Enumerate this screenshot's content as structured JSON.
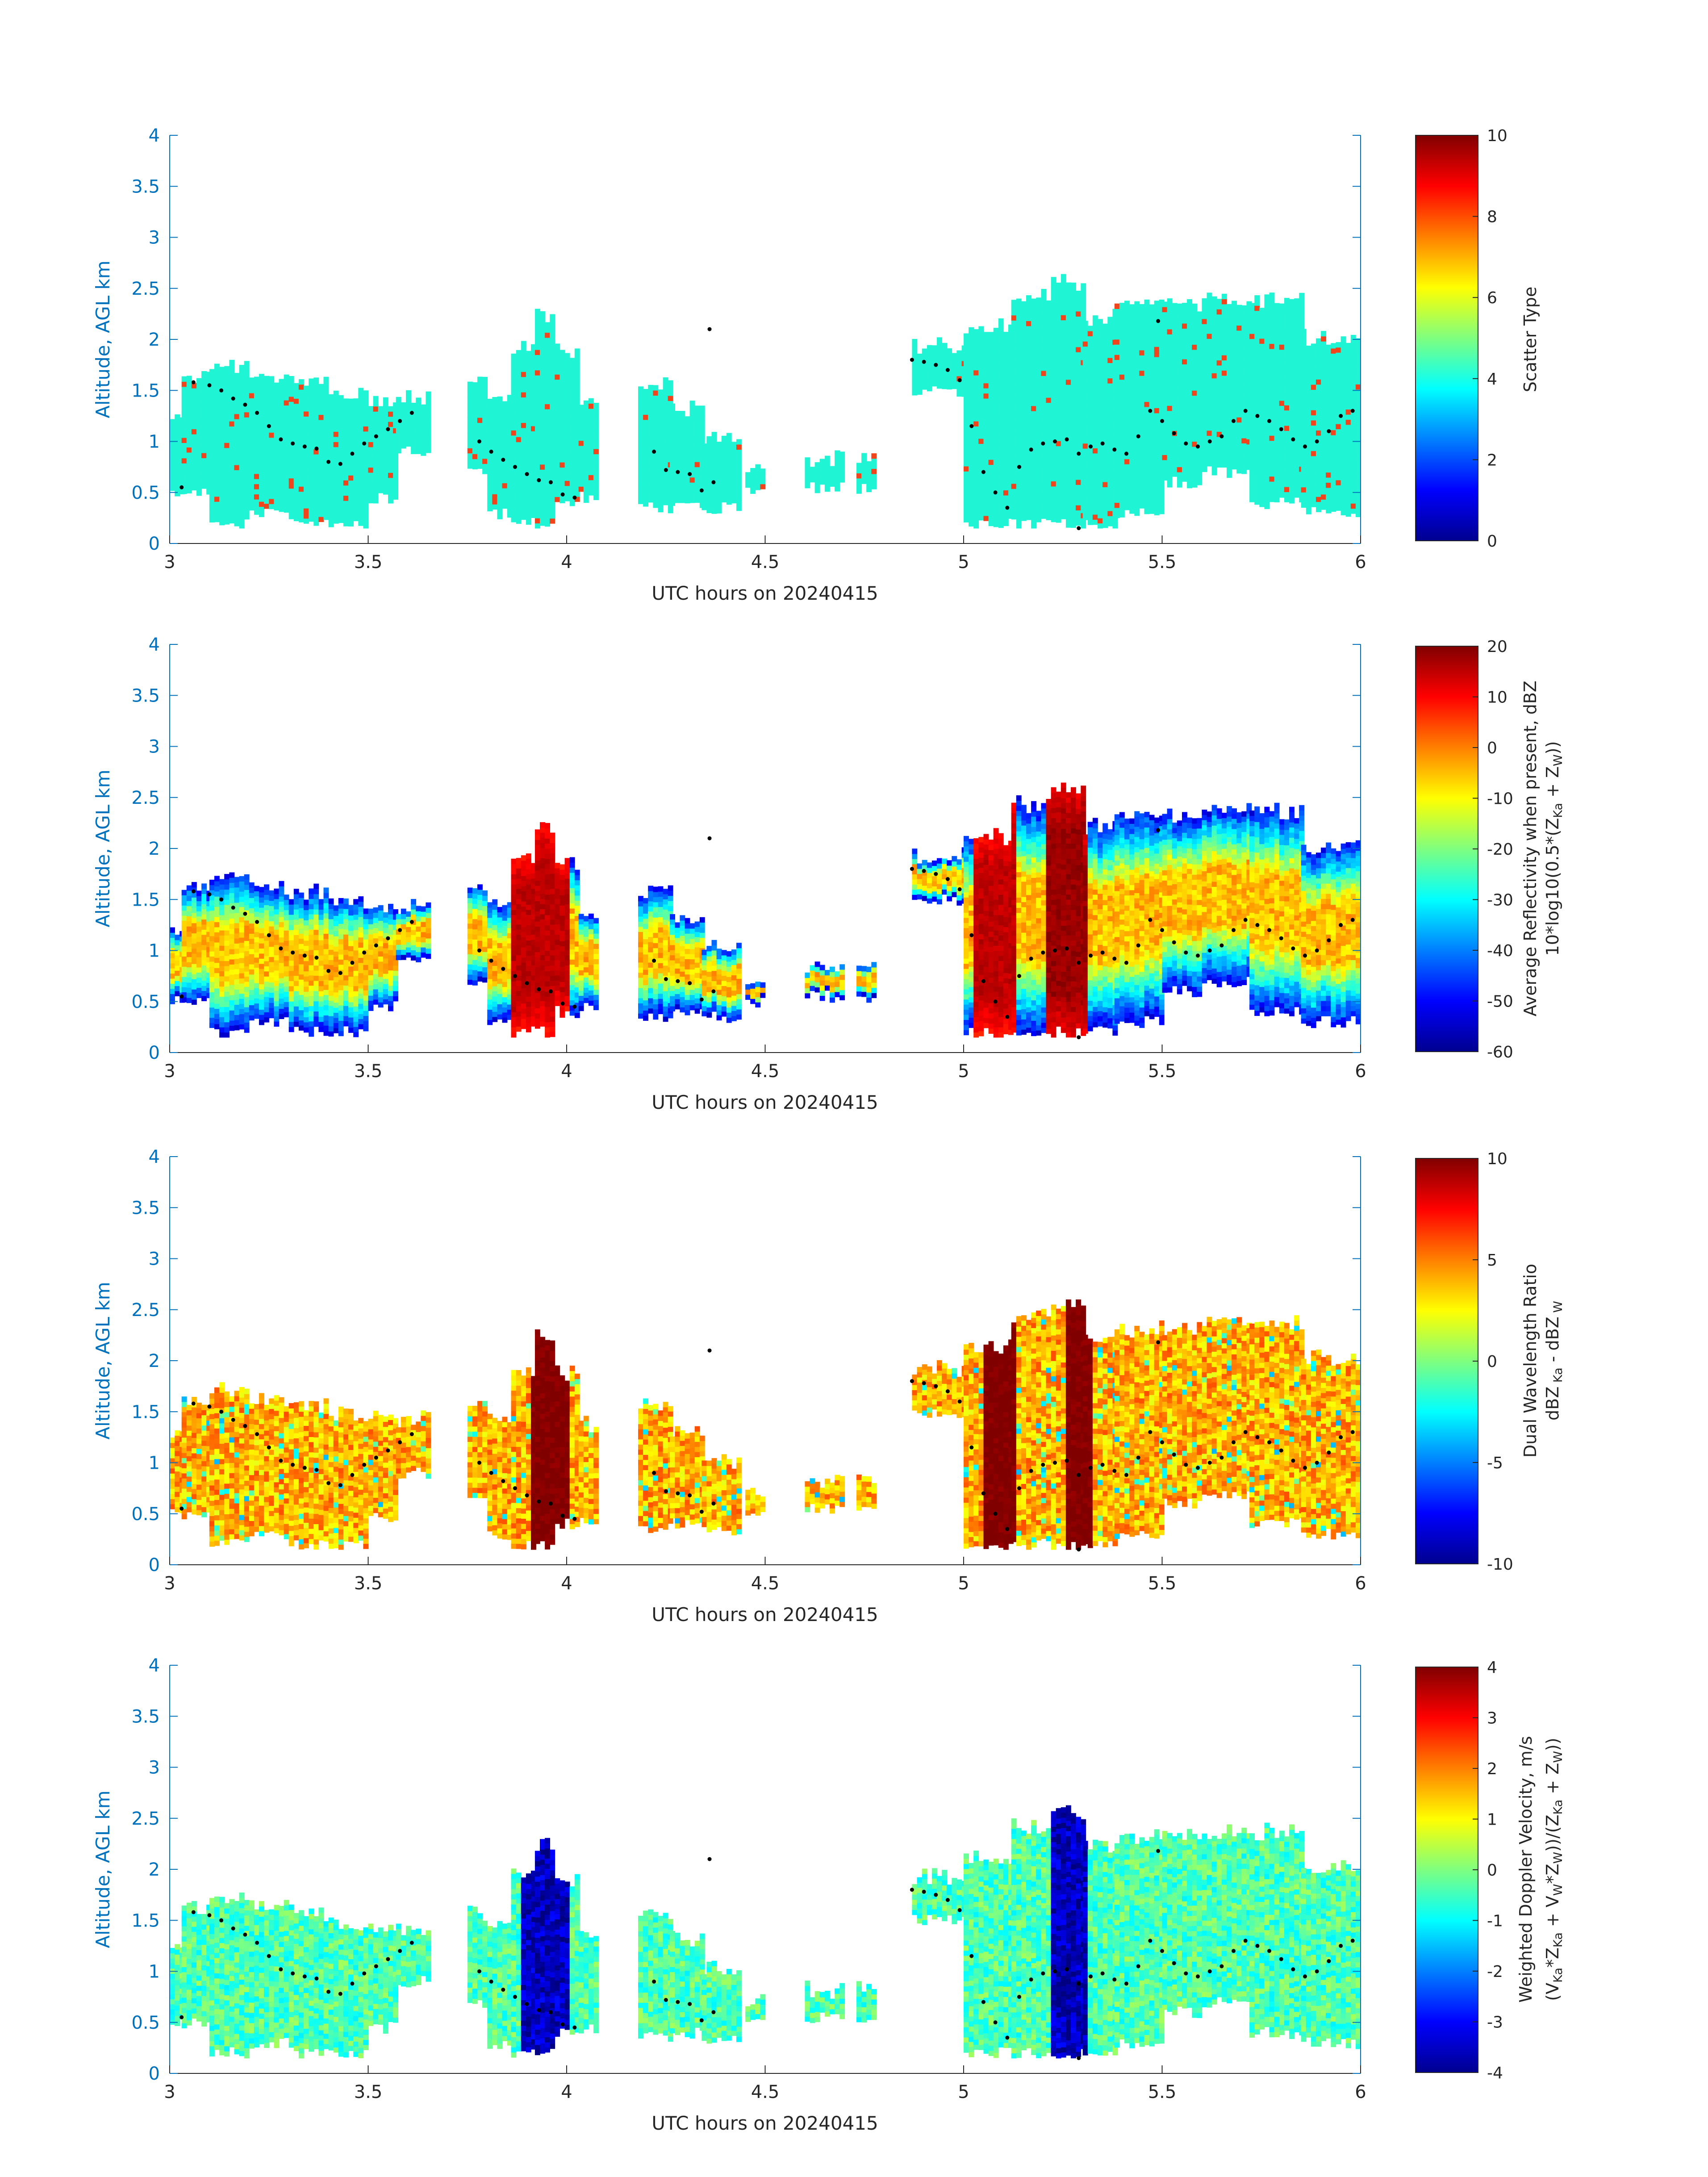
{
  "figure": {
    "panels": [
      {
        "id": "scatter",
        "ylabel": "Altitude, AGL km",
        "xlabel": "UTC hours on 20240415",
        "cbar_label_lines": [
          "Scatter Type"
        ],
        "clim": [
          0,
          10
        ],
        "cbar_ticks": [
          "0",
          "2",
          "4",
          "6",
          "8",
          "10"
        ]
      },
      {
        "id": "reflectivity",
        "ylabel": "Altitude, AGL km",
        "xlabel": "UTC hours on 20240415",
        "cbar_label_lines": [
          "Average Reflectivity when present, dBZ",
          "10*log10(0.5*(Z_Ka + Z_W))"
        ],
        "clim": [
          -60,
          20
        ],
        "cbar_ticks": [
          "-60",
          "-50",
          "-40",
          "-30",
          "-20",
          "-10",
          "0",
          "10",
          "20"
        ]
      },
      {
        "id": "dwr",
        "ylabel": "Altitude, AGL km",
        "xlabel": "UTC hours on 20240415",
        "cbar_label_lines": [
          "Dual Wavelength Ratio",
          "dBZ_Ka - dBZ_W"
        ],
        "clim": [
          -10,
          10
        ],
        "cbar_ticks": [
          "-10",
          "-5",
          "0",
          "5",
          "10"
        ]
      },
      {
        "id": "doppler",
        "ylabel": "Altitude, AGL km",
        "xlabel": "UTC hours on 20240415",
        "cbar_label_lines": [
          "Weighted Doppler Velocity, m/s",
          "(V_Ka*Z_Ka + V_W*Z_W))/(Z_Ka + Z_W))"
        ],
        "clim": [
          -4,
          4
        ],
        "cbar_ticks": [
          "-4",
          "-3",
          "-2",
          "-1",
          "0",
          "1",
          "2",
          "3",
          "4"
        ]
      }
    ],
    "x_ticks": [
      "3",
      "3.5",
      "4",
      "4.5",
      "5",
      "5.5",
      "6"
    ],
    "y_ticks": [
      "0",
      "0.5",
      "1",
      "1.5",
      "2",
      "2.5",
      "3",
      "3.5",
      "4"
    ],
    "axis_color": "#0072BD",
    "colormap": "jet",
    "scatter_fill_color": "#1ff5d5",
    "scatter_alt_color": "#f0441c"
  },
  "chart_data": {
    "type": "heatmap",
    "x_unit": "UTC hours on 20240415",
    "y_unit": "Altitude, AGL km",
    "xlim": [
      3,
      6
    ],
    "ylim": [
      0,
      4
    ],
    "cloud_columns": [
      {
        "x0": 3.0,
        "x1": 3.03,
        "base": 0.5,
        "top": 1.2
      },
      {
        "x0": 3.03,
        "x1": 3.1,
        "base": 0.5,
        "top": 1.6
      },
      {
        "x0": 3.1,
        "x1": 3.2,
        "base": 0.2,
        "top": 1.7
      },
      {
        "x0": 3.2,
        "x1": 3.3,
        "base": 0.3,
        "top": 1.6
      },
      {
        "x0": 3.3,
        "x1": 3.4,
        "base": 0.2,
        "top": 1.55
      },
      {
        "x0": 3.4,
        "x1": 3.5,
        "base": 0.2,
        "top": 1.45
      },
      {
        "x0": 3.5,
        "x1": 3.57,
        "base": 0.45,
        "top": 1.4
      },
      {
        "x0": 3.57,
        "x1": 3.65,
        "base": 0.9,
        "top": 1.4
      },
      {
        "x0": 3.75,
        "x1": 3.8,
        "base": 0.7,
        "top": 1.55
      },
      {
        "x0": 3.8,
        "x1": 3.86,
        "base": 0.3,
        "top": 1.4
      },
      {
        "x0": 3.86,
        "x1": 3.92,
        "base": 0.2,
        "top": 1.9
      },
      {
        "x0": 3.92,
        "x1": 3.97,
        "base": 0.2,
        "top": 2.2
      },
      {
        "x0": 3.97,
        "x1": 4.03,
        "base": 0.4,
        "top": 1.85
      },
      {
        "x0": 4.03,
        "x1": 4.07,
        "base": 0.45,
        "top": 1.35
      },
      {
        "x0": 4.18,
        "x1": 4.26,
        "base": 0.35,
        "top": 1.55
      },
      {
        "x0": 4.26,
        "x1": 4.34,
        "base": 0.4,
        "top": 1.3
      },
      {
        "x0": 4.34,
        "x1": 4.44,
        "base": 0.35,
        "top": 1.0
      },
      {
        "x0": 4.45,
        "x1": 4.5,
        "base": 0.5,
        "top": 0.7
      },
      {
        "x0": 4.6,
        "x1": 4.7,
        "base": 0.55,
        "top": 0.8
      },
      {
        "x0": 4.73,
        "x1": 4.78,
        "base": 0.55,
        "top": 0.8
      },
      {
        "x0": 4.87,
        "x1": 5.0,
        "base": 1.5,
        "top": 1.9
      },
      {
        "x0": 5.0,
        "x1": 5.12,
        "base": 0.2,
        "top": 2.1
      },
      {
        "x0": 5.12,
        "x1": 5.22,
        "base": 0.2,
        "top": 2.4
      },
      {
        "x0": 5.22,
        "x1": 5.3,
        "base": 0.2,
        "top": 2.55
      },
      {
        "x0": 5.3,
        "x1": 5.38,
        "base": 0.2,
        "top": 2.2
      },
      {
        "x0": 5.38,
        "x1": 5.5,
        "base": 0.3,
        "top": 2.3
      },
      {
        "x0": 5.5,
        "x1": 5.6,
        "base": 0.6,
        "top": 2.3
      },
      {
        "x0": 5.6,
        "x1": 5.72,
        "base": 0.7,
        "top": 2.35
      },
      {
        "x0": 5.72,
        "x1": 5.85,
        "base": 0.4,
        "top": 2.35
      },
      {
        "x0": 5.85,
        "x1": 6.0,
        "base": 0.3,
        "top": 2.0
      }
    ],
    "reflectivity_core_dbz": [
      {
        "x0": 3.86,
        "x1": 4.0,
        "value": 15
      },
      {
        "x0": 5.02,
        "x1": 5.12,
        "value": 15
      },
      {
        "x0": 5.2,
        "x1": 5.3,
        "value": 18
      }
    ],
    "doppler_core_ms": [
      {
        "x0": 3.88,
        "x1": 4.0,
        "value": -3.5
      },
      {
        "x0": 5.22,
        "x1": 5.3,
        "value": -3.5
      }
    ],
    "dwr_core_db": [
      {
        "x0": 3.9,
        "x1": 4.0,
        "value": 10
      },
      {
        "x0": 5.05,
        "x1": 5.12,
        "value": 10
      },
      {
        "x0": 5.25,
        "x1": 5.32,
        "value": 10
      }
    ],
    "cloud_base_markers": [
      [
        3.03,
        0.55
      ],
      [
        3.06,
        1.58
      ],
      [
        3.1,
        1.55
      ],
      [
        3.13,
        1.5
      ],
      [
        3.16,
        1.42
      ],
      [
        3.19,
        1.36
      ],
      [
        3.22,
        1.28
      ],
      [
        3.25,
        1.15
      ],
      [
        3.28,
        1.02
      ],
      [
        3.31,
        0.98
      ],
      [
        3.34,
        0.95
      ],
      [
        3.37,
        0.93
      ],
      [
        3.4,
        0.8
      ],
      [
        3.43,
        0.78
      ],
      [
        3.46,
        0.88
      ],
      [
        3.49,
        0.98
      ],
      [
        3.52,
        1.05
      ],
      [
        3.55,
        1.12
      ],
      [
        3.58,
        1.2
      ],
      [
        3.61,
        1.28
      ],
      [
        3.78,
        1.0
      ],
      [
        3.81,
        0.9
      ],
      [
        3.84,
        0.82
      ],
      [
        3.87,
        0.75
      ],
      [
        3.9,
        0.68
      ],
      [
        3.93,
        0.62
      ],
      [
        3.96,
        0.6
      ],
      [
        3.99,
        0.48
      ],
      [
        4.02,
        0.45
      ],
      [
        4.22,
        0.9
      ],
      [
        4.25,
        0.72
      ],
      [
        4.28,
        0.7
      ],
      [
        4.31,
        0.68
      ],
      [
        4.34,
        0.52
      ],
      [
        4.37,
        0.6
      ],
      [
        4.87,
        1.8
      ],
      [
        4.9,
        1.78
      ],
      [
        4.93,
        1.75
      ],
      [
        4.96,
        1.7
      ],
      [
        4.99,
        1.6
      ],
      [
        5.02,
        1.15
      ],
      [
        5.05,
        0.7
      ],
      [
        5.08,
        0.5
      ],
      [
        5.11,
        0.35
      ],
      [
        5.14,
        0.75
      ],
      [
        5.17,
        0.92
      ],
      [
        5.2,
        0.98
      ],
      [
        5.23,
        1.0
      ],
      [
        5.26,
        1.02
      ],
      [
        5.29,
        0.88
      ],
      [
        5.32,
        0.95
      ],
      [
        5.35,
        0.98
      ],
      [
        5.38,
        0.92
      ],
      [
        5.41,
        0.88
      ],
      [
        5.44,
        1.05
      ],
      [
        5.47,
        1.3
      ],
      [
        5.5,
        1.2
      ],
      [
        5.53,
        1.08
      ],
      [
        5.56,
        0.98
      ],
      [
        5.59,
        0.95
      ],
      [
        5.62,
        1.0
      ],
      [
        5.65,
        1.05
      ],
      [
        5.68,
        1.2
      ],
      [
        5.71,
        1.3
      ],
      [
        5.74,
        1.25
      ],
      [
        5.77,
        1.2
      ],
      [
        5.8,
        1.12
      ],
      [
        5.83,
        1.02
      ],
      [
        5.86,
        0.95
      ],
      [
        5.89,
        1.0
      ],
      [
        5.92,
        1.1
      ],
      [
        5.95,
        1.25
      ],
      [
        5.98,
        1.3
      ],
      [
        5.29,
        0.15
      ],
      [
        5.49,
        2.18
      ],
      [
        4.36,
        2.1
      ]
    ]
  }
}
